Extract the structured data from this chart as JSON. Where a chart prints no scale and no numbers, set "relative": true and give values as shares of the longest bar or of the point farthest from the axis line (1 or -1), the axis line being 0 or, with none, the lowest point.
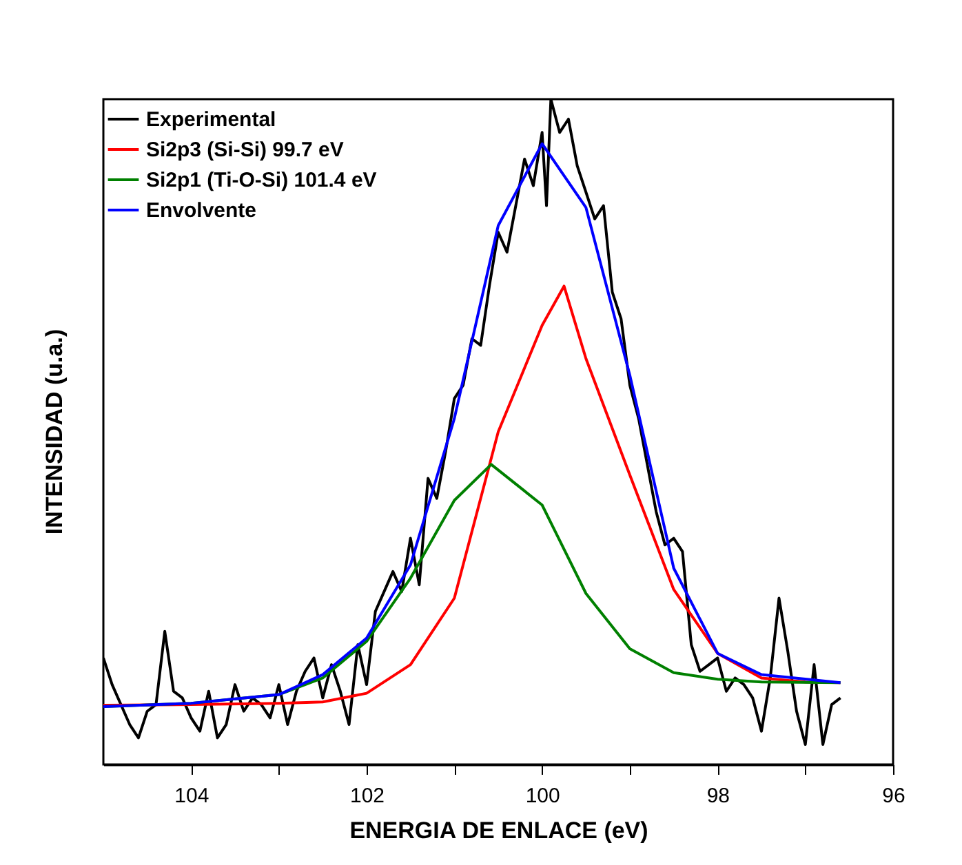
{
  "chart_data": {
    "type": "line",
    "xlabel": "ENERGIA DE ENLACE (eV)",
    "ylabel": "INTENSIDAD (u.a.)",
    "relative": true,
    "xlim": [
      105,
      96
    ],
    "xticks": [
      104,
      {
        "value": 103,
        "label": null
      },
      102,
      {
        "value": 101,
        "label": null
      },
      100,
      {
        "value": 99,
        "label": null
      },
      98,
      {
        "value": 97,
        "label": null
      },
      96
    ],
    "legend": "top left",
    "grid": false,
    "line_style": "solid",
    "marker": "none",
    "series": [
      {
        "name": "Experimental",
        "color": "#000000",
        "x": [
          105.0,
          104.9,
          104.8,
          104.7,
          104.6,
          104.5,
          104.4,
          104.3,
          104.2,
          104.1,
          104.0,
          103.9,
          103.8,
          103.7,
          103.6,
          103.5,
          103.4,
          103.3,
          103.2,
          103.1,
          103.0,
          102.9,
          102.8,
          102.7,
          102.6,
          102.5,
          102.4,
          102.3,
          102.2,
          102.1,
          102.0,
          101.9,
          101.8,
          101.7,
          101.6,
          101.5,
          101.4,
          101.3,
          101.2,
          101.1,
          101.0,
          100.9,
          100.8,
          100.7,
          100.6,
          100.5,
          100.4,
          100.3,
          100.2,
          100.1,
          100.0,
          99.95,
          99.9,
          99.8,
          99.7,
          99.6,
          99.5,
          99.4,
          99.3,
          99.2,
          99.1,
          99.0,
          98.9,
          98.8,
          98.7,
          98.6,
          98.5,
          98.4,
          98.3,
          98.2,
          98.1,
          98.0,
          97.9,
          97.8,
          97.7,
          97.6,
          97.5,
          97.4,
          97.3,
          97.2,
          97.1,
          97.0,
          96.9,
          96.8,
          96.7,
          96.6
        ],
        "values": [
          0.16,
          0.12,
          0.09,
          0.06,
          0.04,
          0.08,
          0.09,
          0.2,
          0.11,
          0.1,
          0.07,
          0.05,
          0.11,
          0.04,
          0.06,
          0.12,
          0.08,
          0.1,
          0.09,
          0.07,
          0.12,
          0.06,
          0.11,
          0.14,
          0.16,
          0.1,
          0.15,
          0.11,
          0.06,
          0.18,
          0.12,
          0.23,
          0.26,
          0.29,
          0.26,
          0.34,
          0.27,
          0.43,
          0.4,
          0.47,
          0.55,
          0.57,
          0.64,
          0.63,
          0.72,
          0.8,
          0.77,
          0.84,
          0.91,
          0.87,
          0.95,
          0.84,
          1.0,
          0.95,
          0.97,
          0.9,
          0.86,
          0.82,
          0.84,
          0.71,
          0.67,
          0.57,
          0.52,
          0.45,
          0.38,
          0.33,
          0.34,
          0.32,
          0.18,
          0.14,
          0.15,
          0.16,
          0.11,
          0.13,
          0.12,
          0.1,
          0.05,
          0.13,
          0.25,
          0.17,
          0.08,
          0.03,
          0.15,
          0.03,
          0.09,
          0.1
        ]
      },
      {
        "name": "Si2p3 (Si-Si) 99.7 eV",
        "color": "#ff0000",
        "x": [
          105,
          104,
          103,
          102.5,
          102,
          101.5,
          101,
          100.5,
          100,
          99.75,
          99.5,
          99,
          98.5,
          98,
          97.5,
          97,
          96.6
        ],
        "values": [
          0.089,
          0.09,
          0.092,
          0.094,
          0.107,
          0.15,
          0.25,
          0.5,
          0.66,
          0.719,
          0.61,
          0.435,
          0.263,
          0.167,
          0.13,
          0.124,
          0.123
        ]
      },
      {
        "name": "Si2p1 (Ti-O-Si) 101.4 eV",
        "color": "#008000",
        "x": [
          105,
          104,
          103,
          102.5,
          102,
          101.5,
          101,
          100.58,
          100,
          99.5,
          99,
          98.5,
          98,
          97.5,
          96.6
        ],
        "values": [
          0.087,
          0.092,
          0.105,
          0.13,
          0.185,
          0.28,
          0.397,
          0.451,
          0.39,
          0.257,
          0.174,
          0.138,
          0.128,
          0.124,
          0.123
        ]
      },
      {
        "name": "Envolvente",
        "color": "#0000ff",
        "x": [
          105,
          104,
          103,
          102.5,
          102,
          101.5,
          101,
          100.5,
          100,
          99.5,
          99,
          98.5,
          98,
          97.5,
          96.6
        ],
        "values": [
          0.087,
          0.092,
          0.105,
          0.135,
          0.19,
          0.3,
          0.52,
          0.81,
          0.933,
          0.837,
          0.585,
          0.295,
          0.167,
          0.135,
          0.123
        ]
      }
    ]
  }
}
